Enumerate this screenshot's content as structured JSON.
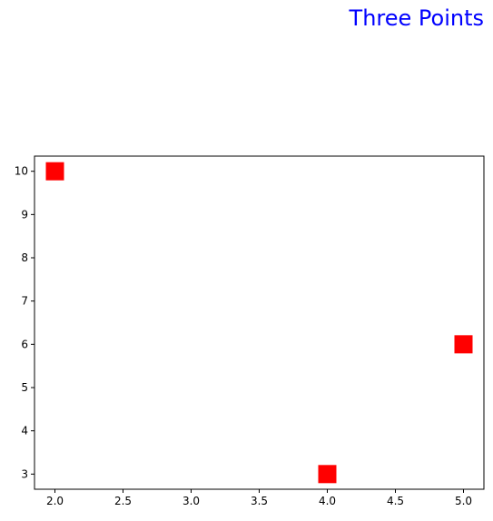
{
  "chart_data": {
    "type": "scatter",
    "title": "Three Points",
    "xlabel": "",
    "ylabel": "",
    "x": [
      2,
      4,
      5
    ],
    "y": [
      10,
      3,
      6
    ],
    "xlim": [
      1.85,
      5.15
    ],
    "ylim": [
      2.65,
      10.35
    ],
    "xticks": [
      "2.0",
      "2.5",
      "3.0",
      "3.5",
      "4.0",
      "4.5",
      "5.0"
    ],
    "yticks": [
      "3",
      "4",
      "5",
      "6",
      "7",
      "8",
      "9",
      "10"
    ],
    "marker": "square",
    "grid": false,
    "legend": null
  },
  "colors": {
    "title": "#0000ff",
    "marker": "#ff0000",
    "axes": "#000000"
  }
}
